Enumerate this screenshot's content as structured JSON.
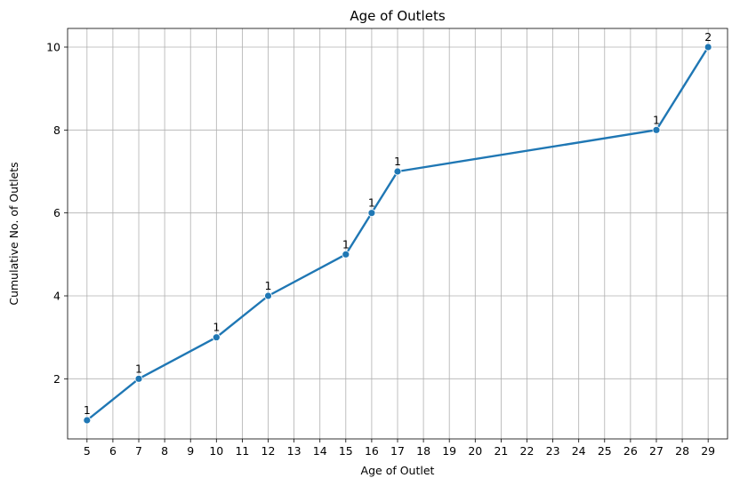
{
  "chart_data": {
    "type": "line",
    "title": "Age of Outlets",
    "xlabel": "Age of Outlet",
    "ylabel": "Cumulative No. of Outlets",
    "x_ticks": [
      "5",
      "6",
      "7",
      "8",
      "9",
      "10",
      "11",
      "12",
      "13",
      "14",
      "15",
      "16",
      "17",
      "18",
      "19",
      "20",
      "21",
      "22",
      "23",
      "24",
      "25",
      "26",
      "27",
      "28",
      "29"
    ],
    "y_ticks": [
      "2",
      "4",
      "6",
      "8",
      "10"
    ],
    "xlim": [
      4.25,
      29.75
    ],
    "ylim": [
      0.55,
      10.45
    ],
    "grid": true,
    "series": [
      {
        "color": "#1f77b4",
        "points": [
          {
            "x": 5,
            "y": 1,
            "label": "1"
          },
          {
            "x": 7,
            "y": 2,
            "label": "1"
          },
          {
            "x": 10,
            "y": 3,
            "label": "1"
          },
          {
            "x": 12,
            "y": 4,
            "label": "1"
          },
          {
            "x": 15,
            "y": 5,
            "label": "1"
          },
          {
            "x": 16,
            "y": 6,
            "label": "1"
          },
          {
            "x": 17,
            "y": 7,
            "label": "1"
          },
          {
            "x": 27,
            "y": 8,
            "label": "1"
          },
          {
            "x": 29,
            "y": 10,
            "label": "2"
          }
        ]
      }
    ]
  }
}
